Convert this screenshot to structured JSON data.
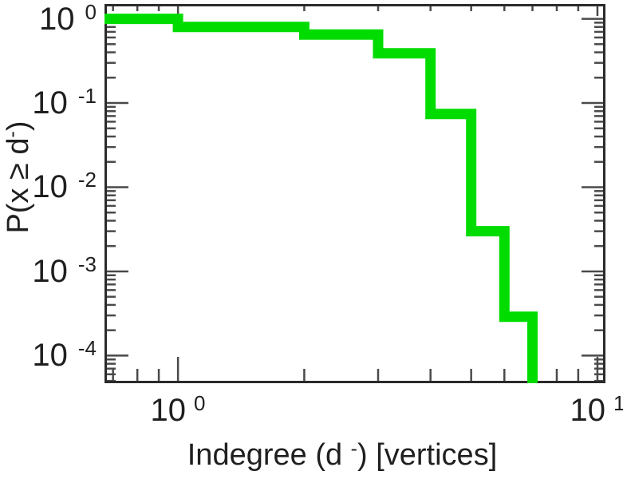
{
  "figure": {
    "background": "#ffffff",
    "frame_color": "#2b2b2b",
    "tick_color": "#4a4a4a",
    "text_color": "#1f1f1f"
  },
  "chart_data": {
    "type": "line",
    "subtype": "step-ccdf",
    "title": "",
    "xlabel": "Indegree (d⁻) [vertices]",
    "ylabel": "P(x ≥ d⁻)",
    "xlabel_parts": {
      "pre": "Indegree (d ",
      "sup": "-",
      "post": ") [vertices]"
    },
    "ylabel_parts": {
      "pre": "P(x ≥ d",
      "sup": "-",
      "post": ")"
    },
    "x_scale": "log",
    "y_scale": "log",
    "xlim": [
      0.668,
      10.45
    ],
    "ylim": [
      4.7e-05,
      1.5
    ],
    "grid": false,
    "legend": null,
    "x_major_ticks": [
      1,
      10
    ],
    "x_tick_labels": [
      {
        "base": "10",
        "exp": "0"
      },
      {
        "base": "10",
        "exp": "1"
      }
    ],
    "y_major_ticks": [
      1,
      0.1,
      0.01,
      0.001,
      0.0001
    ],
    "y_tick_labels": [
      {
        "base": "10",
        "exp": "0"
      },
      {
        "base": "10",
        "exp": "-1"
      },
      {
        "base": "10",
        "exp": "-2"
      },
      {
        "base": "10",
        "exp": "-3"
      },
      {
        "base": "10",
        "exp": "-4"
      }
    ],
    "series": [
      {
        "name": "indegree-ccdf",
        "color": "#00DC00",
        "line_width": 13,
        "points": [
          [
            0.668,
            1.0
          ],
          [
            1,
            1.0
          ],
          [
            1,
            0.8
          ],
          [
            2,
            0.8
          ],
          [
            2,
            0.65
          ],
          [
            3,
            0.65
          ],
          [
            3,
            0.39
          ],
          [
            4,
            0.39
          ],
          [
            4,
            0.074
          ],
          [
            5,
            0.074
          ],
          [
            5,
            0.003
          ],
          [
            6,
            0.003
          ],
          [
            6,
            0.00029
          ],
          [
            7,
            0.00029
          ],
          [
            7,
            4.7e-05
          ]
        ]
      }
    ]
  }
}
